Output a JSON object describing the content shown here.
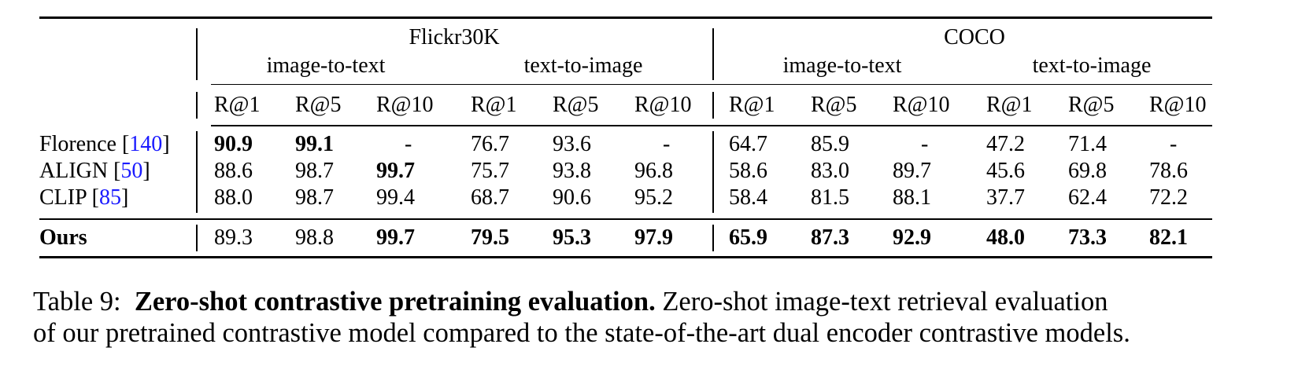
{
  "table": {
    "header": {
      "groups": [
        {
          "label": "Flickr30K",
          "subgroups": [
            "image-to-text",
            "text-to-image"
          ]
        },
        {
          "label": "COCO",
          "subgroups": [
            "image-to-text",
            "text-to-image"
          ]
        }
      ],
      "metrics": [
        "R@1",
        "R@5",
        "R@10",
        "R@1",
        "R@5",
        "R@10",
        "R@1",
        "R@5",
        "R@10",
        "R@1",
        "R@5",
        "R@10"
      ]
    },
    "rows": [
      {
        "name": "Florence ",
        "cite": "140",
        "close": "]",
        "values": [
          "90.9",
          "99.1",
          "-",
          "76.7",
          "93.6",
          "-",
          "64.7",
          "85.9",
          "-",
          "47.2",
          "71.4",
          "-"
        ],
        "bold": [
          true,
          true,
          false,
          false,
          false,
          false,
          false,
          false,
          false,
          false,
          false,
          false
        ]
      },
      {
        "name": "ALIGN ",
        "cite": "50",
        "close": "]",
        "values": [
          "88.6",
          "98.7",
          "99.7",
          "75.7",
          "93.8",
          "96.8",
          "58.6",
          "83.0",
          "89.7",
          "45.6",
          "69.8",
          "78.6"
        ],
        "bold": [
          false,
          false,
          true,
          false,
          false,
          false,
          false,
          false,
          false,
          false,
          false,
          false
        ]
      },
      {
        "name": "CLIP ",
        "cite": "85",
        "close": "]",
        "values": [
          "88.0",
          "98.7",
          "99.4",
          "68.7",
          "90.6",
          "95.2",
          "58.4",
          "81.5",
          "88.1",
          "37.7",
          "62.4",
          "72.2"
        ],
        "bold": [
          false,
          false,
          false,
          false,
          false,
          false,
          false,
          false,
          false,
          false,
          false,
          false
        ]
      },
      {
        "name": "Ours",
        "cite": "",
        "close": "",
        "values": [
          "89.3",
          "98.8",
          "99.7",
          "79.5",
          "95.3",
          "97.9",
          "65.9",
          "87.3",
          "92.9",
          "48.0",
          "73.3",
          "82.1"
        ],
        "bold": [
          false,
          false,
          true,
          true,
          true,
          true,
          true,
          true,
          true,
          true,
          true,
          true
        ]
      }
    ]
  },
  "caption": {
    "label": "Table 9:",
    "title": "Zero-shot contrastive pretraining evaluation.",
    "text_line1": " Zero-shot image-text retrieval evaluation",
    "text_line2": "of our pretrained contrastive model compared to the state-of-the-art dual encoder contrastive models."
  }
}
